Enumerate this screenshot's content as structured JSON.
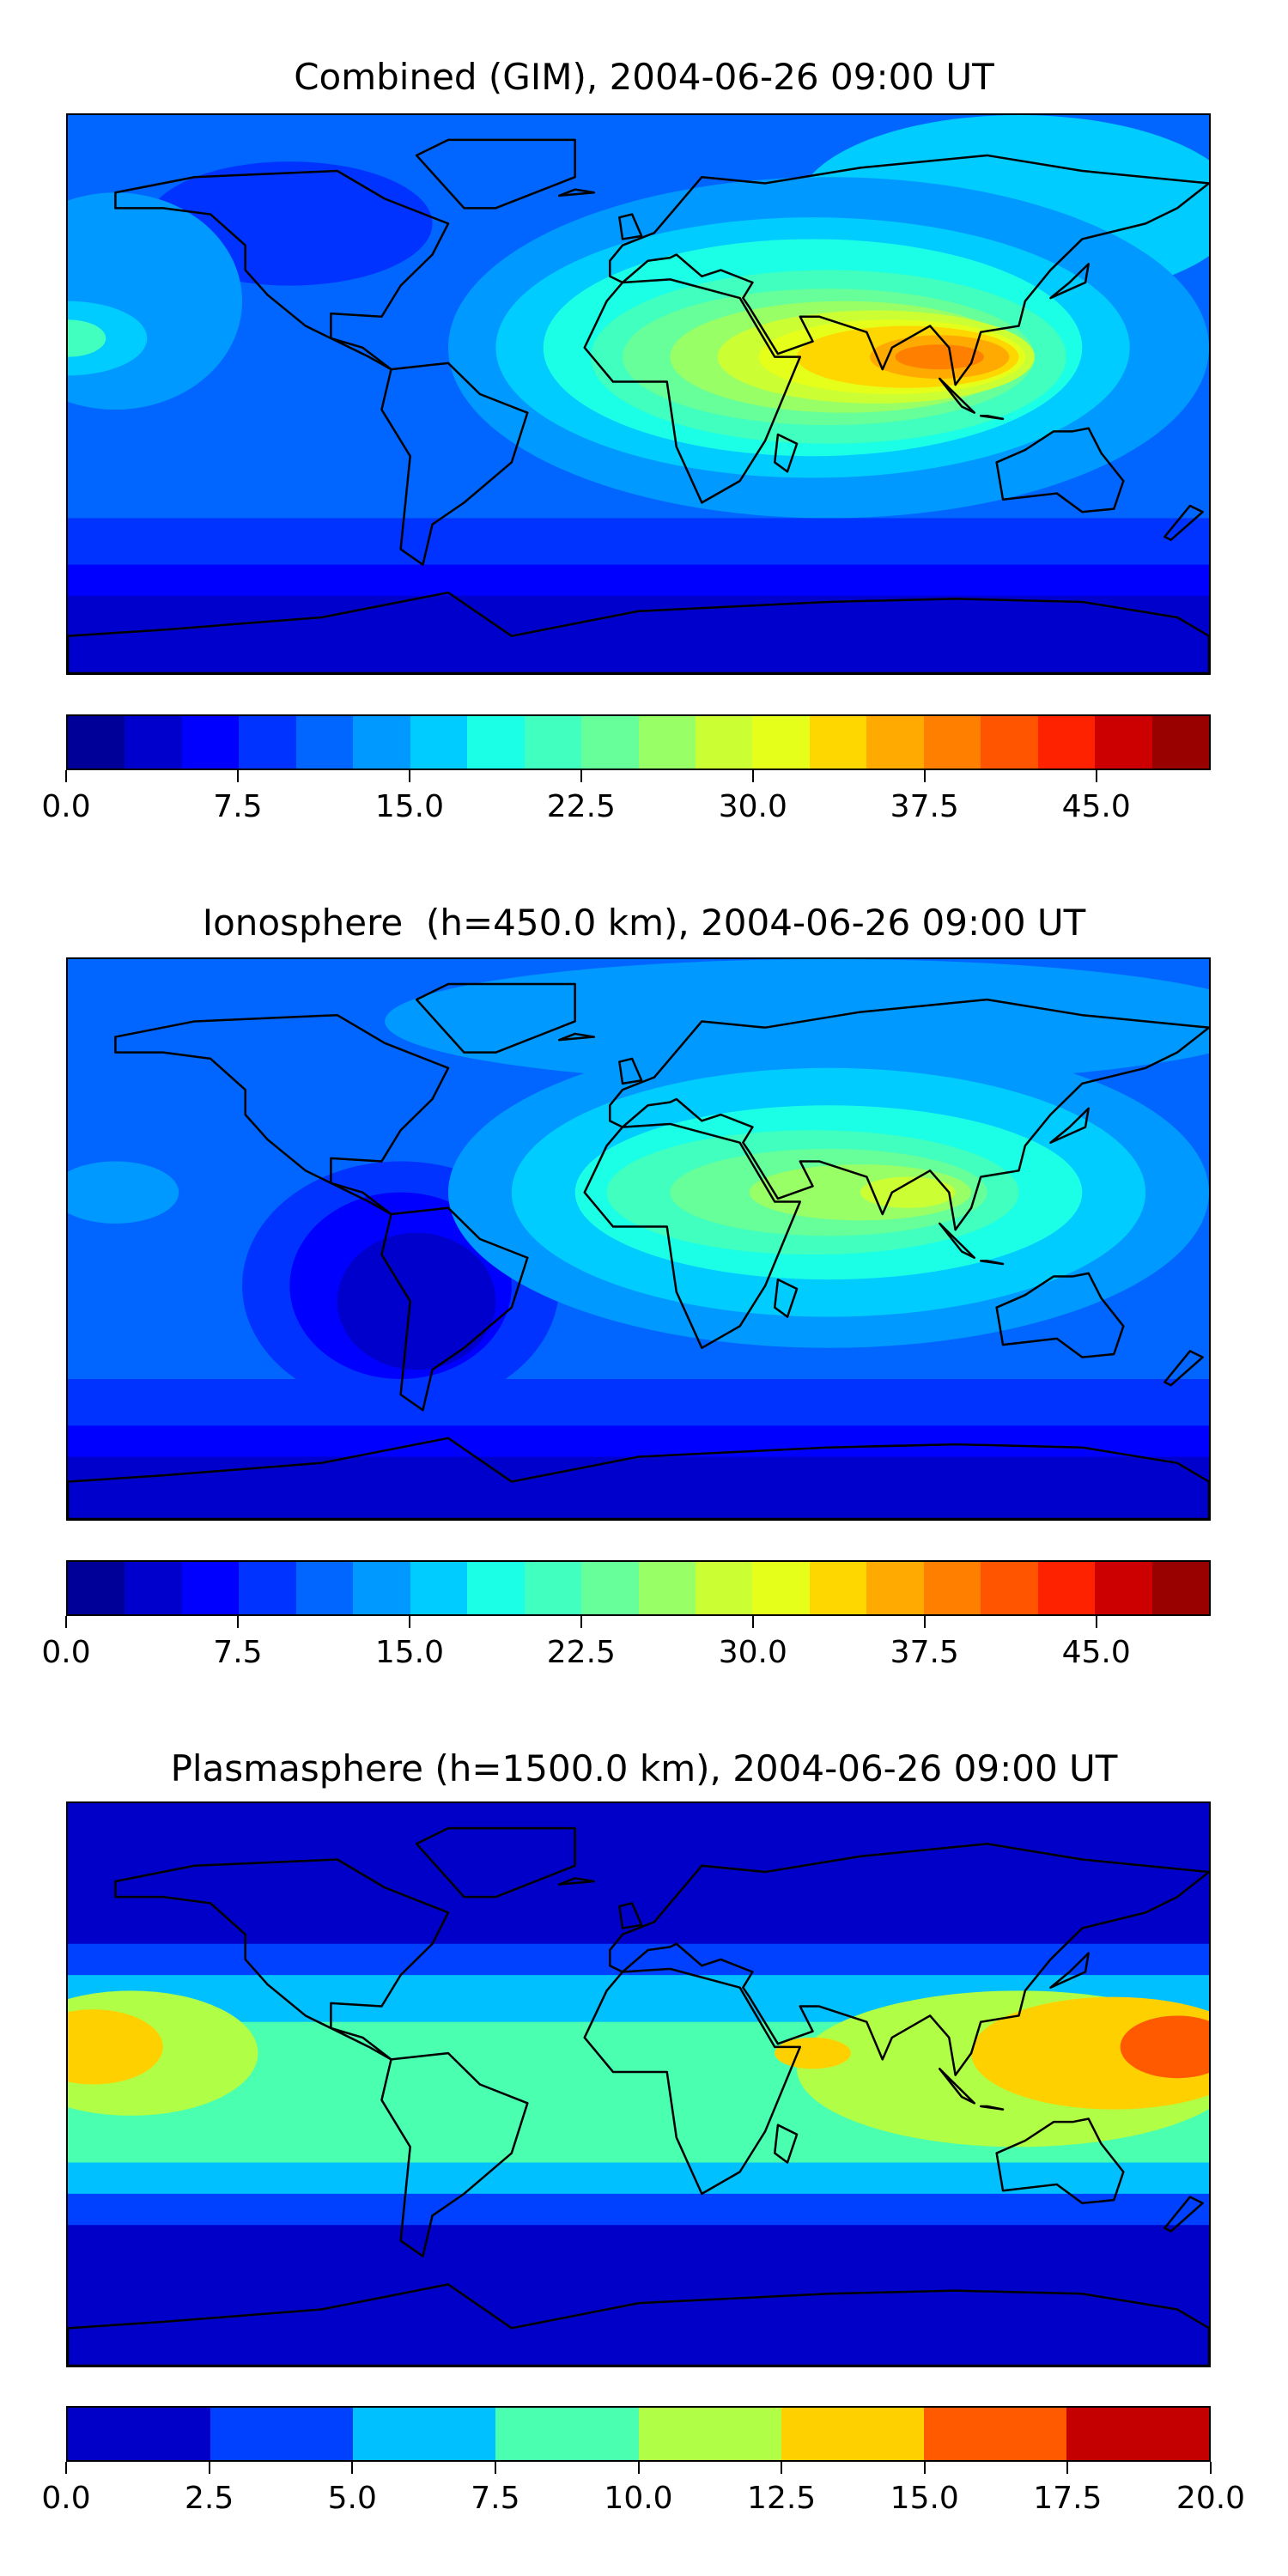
{
  "panels": [
    {
      "title": "Combined (GIM), 2004-06-26 09:00 UT",
      "colorbar": {
        "min": 0,
        "max": 50,
        "step": 2.5,
        "tick_labels": [
          "0.0",
          "7.5",
          "15.0",
          "22.5",
          "30.0",
          "37.5",
          "45.0"
        ],
        "tick_values": [
          0,
          7.5,
          15,
          22.5,
          30,
          37.5,
          45
        ],
        "colors": [
          "#000099",
          "#0000cc",
          "#0000ff",
          "#0033ff",
          "#0066ff",
          "#0099ff",
          "#00ccff",
          "#1affe6",
          "#40ffbf",
          "#66ff99",
          "#99ff66",
          "#ccff33",
          "#e6ff1a",
          "#ffd700",
          "#ffaa00",
          "#ff8000",
          "#ff5500",
          "#ff2200",
          "#cc0000",
          "#990000"
        ]
      }
    },
    {
      "title": "Ionosphere  (h=450.0 km), 2004-06-26 09:00 UT",
      "colorbar": {
        "min": 0,
        "max": 50,
        "step": 2.5,
        "tick_labels": [
          "0.0",
          "7.5",
          "15.0",
          "22.5",
          "30.0",
          "37.5",
          "45.0"
        ],
        "tick_values": [
          0,
          7.5,
          15,
          22.5,
          30,
          37.5,
          45
        ],
        "colors": [
          "#000099",
          "#0000cc",
          "#0000ff",
          "#0033ff",
          "#0066ff",
          "#0099ff",
          "#00ccff",
          "#1affe6",
          "#40ffbf",
          "#66ff99",
          "#99ff66",
          "#ccff33",
          "#e6ff1a",
          "#ffd700",
          "#ffaa00",
          "#ff8000",
          "#ff5500",
          "#ff2200",
          "#cc0000",
          "#990000"
        ]
      }
    },
    {
      "title": "Plasmasphere (h=1500.0 km), 2004-06-26 09:00 UT",
      "colorbar": {
        "min": 0,
        "max": 20,
        "step": 2.5,
        "tick_labels": [
          "0.0",
          "2.5",
          "5.0",
          "7.5",
          "10.0",
          "12.5",
          "15.0",
          "17.5",
          "20.0"
        ],
        "tick_values": [
          0,
          2.5,
          5,
          7.5,
          10,
          12.5,
          15,
          17.5,
          20
        ],
        "colors": [
          "#0000c8",
          "#0040ff",
          "#00c0ff",
          "#4affaf",
          "#b0ff46",
          "#ffd000",
          "#ff5a00",
          "#c40000"
        ]
      }
    }
  ]
}
